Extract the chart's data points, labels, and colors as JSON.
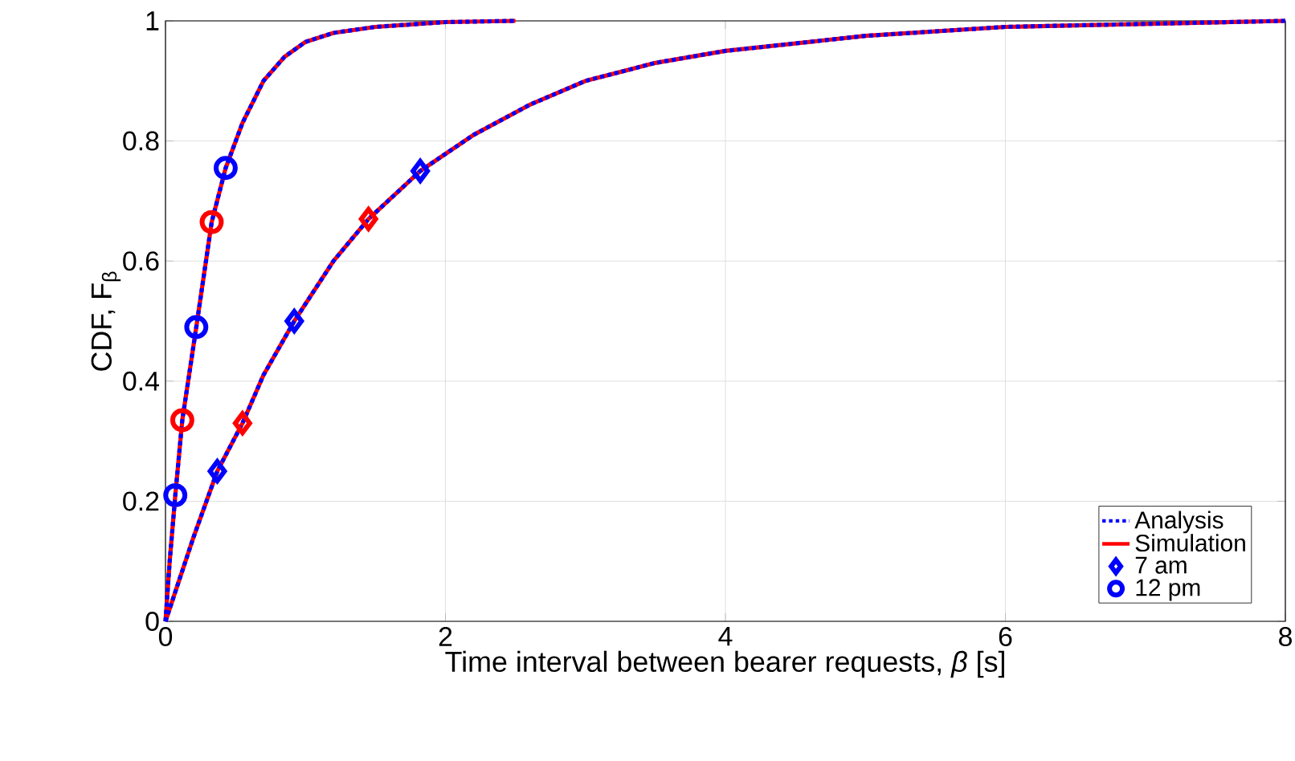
{
  "chart_data": {
    "type": "line",
    "xlabel": "Time interval between bearer requests, *β* [s]",
    "ylabel": "CDF, F$_{β}$",
    "xlim": [
      0,
      8
    ],
    "ylim": [
      0,
      1
    ],
    "xticks": [
      0,
      2,
      4,
      6,
      8
    ],
    "yticks": [
      0,
      0.2,
      0.4,
      0.6,
      0.8,
      1
    ],
    "grid": true,
    "legend": "bottom right",
    "series": [
      {
        "name": "Analysis",
        "color": "#0000ff",
        "line_style": "dotted",
        "x": [
          0,
          0.1,
          0.2,
          0.37,
          0.55,
          0.7,
          0.92,
          1.2,
          1.45,
          1.82,
          2.2,
          2.6,
          3,
          3.5,
          4,
          5,
          6,
          7,
          8
        ],
        "values": [
          0,
          0.07,
          0.14,
          0.25,
          0.33,
          0.41,
          0.5,
          0.6,
          0.67,
          0.75,
          0.81,
          0.86,
          0.9,
          0.93,
          0.95,
          0.975,
          0.99,
          0.995,
          1.0
        ]
      },
      {
        "color": "#0000ff",
        "line_style": "dotted",
        "x": [
          0,
          0.03,
          0.07,
          0.12,
          0.22,
          0.33,
          0.43,
          0.55,
          0.7,
          0.85,
          1.0,
          1.2,
          1.5,
          2.0,
          2.5
        ],
        "values": [
          0,
          0.1,
          0.21,
          0.335,
          0.49,
          0.665,
          0.755,
          0.83,
          0.9,
          0.94,
          0.965,
          0.98,
          0.99,
          0.998,
          1.0
        ]
      },
      {
        "name": "Simulation",
        "color": "#ff0000",
        "line_style": "solid",
        "x": [
          0,
          0.1,
          0.2,
          0.37,
          0.55,
          0.7,
          0.92,
          1.2,
          1.45,
          1.82,
          2.2,
          2.6,
          3,
          3.5,
          4,
          5,
          6,
          7,
          8
        ],
        "values": [
          0,
          0.07,
          0.14,
          0.25,
          0.33,
          0.41,
          0.5,
          0.6,
          0.67,
          0.75,
          0.81,
          0.86,
          0.9,
          0.93,
          0.95,
          0.975,
          0.99,
          0.995,
          1.0
        ]
      },
      {
        "color": "#ff0000",
        "line_style": "solid",
        "x": [
          0,
          0.03,
          0.07,
          0.12,
          0.22,
          0.33,
          0.43,
          0.55,
          0.7,
          0.85,
          1.0,
          1.2,
          1.5,
          2.0,
          2.5
        ],
        "values": [
          0,
          0.1,
          0.21,
          0.335,
          0.49,
          0.665,
          0.755,
          0.83,
          0.9,
          0.94,
          0.965,
          0.98,
          0.99,
          0.998,
          1.0
        ]
      },
      {
        "name": "7 am",
        "type": "scatter",
        "marker": "diamond",
        "color": "#0000ff",
        "colors": [
          "#0000ff",
          "#ff0000",
          "#0000ff",
          "#ff0000",
          "#0000ff"
        ],
        "x": [
          0.37,
          0.55,
          0.92,
          1.45,
          1.82
        ],
        "values": [
          0.25,
          0.33,
          0.5,
          0.67,
          0.75
        ]
      },
      {
        "name": "12 pm",
        "type": "scatter",
        "marker": "circle",
        "color": "#0000ff",
        "colors": [
          "#0000ff",
          "#ff0000",
          "#0000ff",
          "#ff0000",
          "#0000ff"
        ],
        "x": [
          0.07,
          0.12,
          0.22,
          0.33,
          0.43
        ],
        "values": [
          0.21,
          0.335,
          0.49,
          0.665,
          0.755
        ]
      }
    ]
  }
}
